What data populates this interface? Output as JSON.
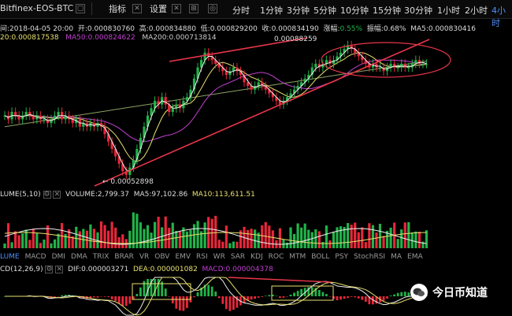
{
  "toolbar": {
    "pair": "Bitfinex-EOS-BTC",
    "indicator_label": "指标",
    "settings_label": "设置",
    "timeframes": [
      "分时",
      "1分钟",
      "3分钟",
      "5分钟",
      "10分钟",
      "15分钟",
      "30分钟",
      "1小时",
      "2小时",
      "4小时"
    ],
    "active_timeframe": "4小时"
  },
  "info": {
    "time": "间:2018-04-05 20:00",
    "open": "开:0.000830760",
    "high": "高:0.000834880",
    "low": "低:0.000829200",
    "close": "收:0.000834190",
    "change": "涨幅:",
    "change_val": "0.55%",
    "amp": "振幅:",
    "amp_val": "0.68%",
    "ma5": "MA5:0.000830416",
    "ma20": "20:0.000817538",
    "ma50": "MA50:0.000824622",
    "ma200": "MA200:0.000713814"
  },
  "price_labels": {
    "high": "0.00088259",
    "low": "0.00052898"
  },
  "volume": {
    "title": "LUME(5,10)",
    "vol": "VOLUME:2,799.37",
    "ma5": "MA5:97,102.86",
    "ma10": "MA10:113,611.51"
  },
  "tabs": [
    "LUME",
    "MACD",
    "DMI",
    "DMA",
    "TRIX",
    "BRAR",
    "VR",
    "OBV",
    "EMV",
    "RSI",
    "WR",
    "SAR",
    "KDJ",
    "ROC",
    "MTM",
    "BOLL",
    "PSY",
    "StochRSI",
    "MA",
    "EMA"
  ],
  "active_tab": "LUME",
  "macd": {
    "title": "CD(12,26,9)",
    "dif": "DIF:0.000003271",
    "dea": "DEA:0.000001082",
    "macd": "MACD:0.000004378"
  },
  "watermark": "今日币知道",
  "colors": {
    "up": "#21b34a",
    "down": "#e8273a",
    "ma5": "#f0f0f0",
    "ma20": "#e8e070",
    "ma50": "#c040d0",
    "ma200": "#8aa060",
    "annot": "#e8364a",
    "accent": "#4f8ef7"
  },
  "chart_data": {
    "type": "candlestick",
    "ylim": [
      0.0005,
      0.0009
    ],
    "closes": [
      0.00069,
      0.00068,
      0.0007,
      0.00069,
      0.00068,
      0.00069,
      0.0007,
      0.00069,
      0.00068,
      0.00069,
      0.00068,
      0.00068,
      0.00067,
      0.00068,
      0.00069,
      0.0007,
      0.00068,
      0.00069,
      0.00068,
      0.00067,
      0.00068,
      0.00066,
      0.00067,
      0.00066,
      0.00067,
      0.00066,
      0.00067,
      0.00066,
      0.00064,
      0.00062,
      0.0006,
      0.00058,
      0.00056,
      0.00054,
      0.00053,
      0.00055,
      0.00057,
      0.0006,
      0.00063,
      0.00066,
      0.00069,
      0.00071,
      0.00073,
      0.00072,
      0.00074,
      0.00072,
      0.0007,
      0.00071,
      0.00072,
      0.00071,
      0.00073,
      0.00074,
      0.00076,
      0.00079,
      0.00082,
      0.00084,
      0.00086,
      0.00085,
      0.00084,
      0.00083,
      0.00082,
      0.00081,
      0.0008,
      0.00081,
      0.00082,
      0.00081,
      0.0008,
      0.00078,
      0.00077,
      0.00076,
      0.00077,
      0.00078,
      0.00077,
      0.00076,
      0.00075,
      0.00074,
      0.00073,
      0.00072,
      0.00073,
      0.00074,
      0.00075,
      0.00076,
      0.00077,
      0.00078,
      0.00079,
      0.0008,
      0.00082,
      0.00083,
      0.00082,
      0.00083,
      0.00084,
      0.00083,
      0.00084,
      0.00085,
      0.00086,
      0.00087,
      0.00088,
      0.00087,
      0.00086,
      0.00085,
      0.00084,
      0.00083,
      0.00082,
      0.00083,
      0.00082,
      0.00082,
      0.00081,
      0.00082,
      0.00083,
      0.00082,
      0.00082,
      0.00083,
      0.00082,
      0.00082,
      0.00083,
      0.00084,
      0.00083,
      0.00083,
      0.00083
    ]
  }
}
